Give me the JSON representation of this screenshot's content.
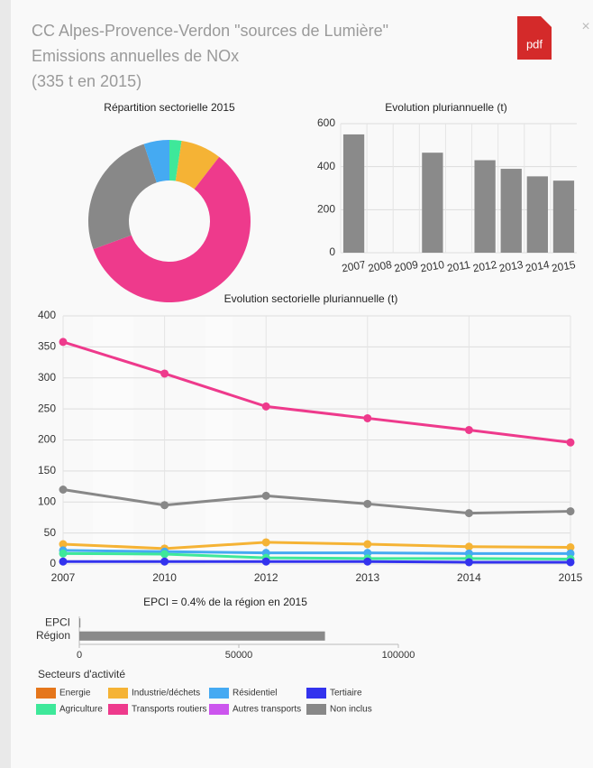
{
  "header": {
    "lines": [
      "CC Alpes-Provence-Verdon \"sources de Lumière\"",
      "Emissions annuelles de NOx",
      "(335 t en 2015)"
    ],
    "pdf": "pdf",
    "close": "×"
  },
  "chart_data": [
    {
      "type": "pie",
      "title": "Répartition sectorielle 2015",
      "donut": true,
      "categories": [
        "Agriculture",
        "Industrie/déchets",
        "Transports routiers",
        "Non inclus",
        "Résidentiel"
      ],
      "values": [
        8,
        27,
        196,
        85,
        17
      ],
      "colors": [
        "#3ee89a",
        "#f5b335",
        "#ee3a8c",
        "#888888",
        "#45aaf2"
      ]
    },
    {
      "type": "bar",
      "title": "Evolution pluriannuelle (t)",
      "categories": [
        "2007",
        "2008",
        "2009",
        "2010",
        "2011",
        "2012",
        "2013",
        "2014",
        "2015"
      ],
      "values": [
        550,
        null,
        null,
        465,
        null,
        430,
        390,
        355,
        335
      ],
      "color": "#8a8a8a",
      "ylim": [
        0,
        600
      ],
      "yticks": [
        0,
        200,
        400,
        600
      ],
      "grid": true
    },
    {
      "type": "line",
      "title": "Evolution sectorielle pluriannuelle (t)",
      "categories": [
        "2007",
        "2010",
        "2012",
        "2013",
        "2014",
        "2015"
      ],
      "series": [
        {
          "name": "Transports routiers",
          "color": "#ee3a8c",
          "values": [
            358,
            307,
            254,
            235,
            216,
            196
          ]
        },
        {
          "name": "Non inclus",
          "color": "#888888",
          "values": [
            120,
            95,
            110,
            97,
            82,
            85
          ]
        },
        {
          "name": "Industrie/déchets",
          "color": "#f5b335",
          "values": [
            32,
            25,
            35,
            32,
            28,
            27
          ]
        },
        {
          "name": "Résidentiel",
          "color": "#45aaf2",
          "values": [
            22,
            20,
            18,
            18,
            17,
            17
          ]
        },
        {
          "name": "Agriculture",
          "color": "#3ee89a",
          "values": [
            17,
            16,
            10,
            9,
            9,
            8
          ]
        },
        {
          "name": "Tertiaire",
          "color": "#3333ee",
          "values": [
            4,
            4,
            4,
            4,
            3,
            3
          ]
        }
      ],
      "ylim": [
        0,
        400
      ],
      "yticks": [
        0,
        50,
        100,
        150,
        200,
        250,
        300,
        350,
        400
      ],
      "grid": true
    },
    {
      "type": "hbar",
      "title": "EPCI = 0.4% de la région en 2015",
      "categories": [
        "EPCI",
        "Région"
      ],
      "values": [
        335,
        77000
      ],
      "color": "#8a8a8a",
      "xlim": [
        0,
        100000
      ],
      "xticks": [
        0,
        50000,
        100000
      ]
    }
  ],
  "legend": {
    "title": "Secteurs d'activité",
    "items": [
      {
        "name": "Energie",
        "color": "#e5761b"
      },
      {
        "name": "Industrie/déchets",
        "color": "#f5b335"
      },
      {
        "name": "Résidentiel",
        "color": "#45aaf2"
      },
      {
        "name": "Tertiaire",
        "color": "#3333ee"
      },
      {
        "name": "Agriculture",
        "color": "#3ee89a"
      },
      {
        "name": "Transports routiers",
        "color": "#ee3a8c"
      },
      {
        "name": "Autres transports",
        "color": "#cc55ee"
      },
      {
        "name": "Non inclus",
        "color": "#888888"
      }
    ]
  }
}
